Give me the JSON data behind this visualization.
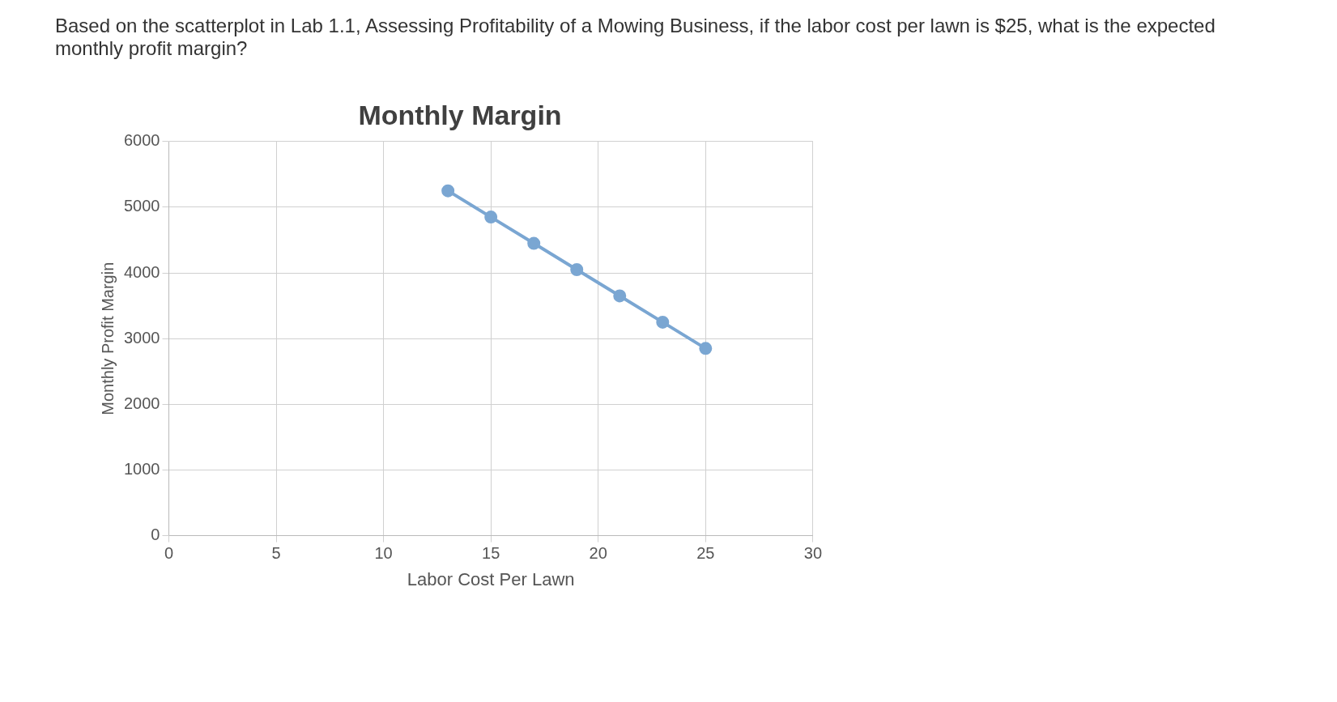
{
  "chart_data": {
    "type": "line",
    "title": "Monthly Margin",
    "xlabel": "Labor Cost Per Lawn",
    "ylabel": "Monthly Profit Margin",
    "annotations": [
      "Based on the scatterplot in Lab 1.1, Assessing Profitability of a Mowing Business, if the labor cost per lawn is $25, what is the expected monthly profit margin?"
    ],
    "x": [
      13,
      15,
      17,
      19,
      21,
      23,
      25
    ],
    "series": [
      {
        "color": "#7aa6d2",
        "values": [
          5250,
          4850,
          4450,
          4050,
          3650,
          3250,
          2850
        ]
      }
    ],
    "xlim": [
      0,
      30
    ],
    "xticks": [
      0,
      5,
      10,
      15,
      20,
      25,
      30
    ],
    "ylim": [
      0,
      6000
    ],
    "yticks": [
      0,
      1000,
      2000,
      3000,
      4000,
      5000,
      6000
    ],
    "grid": true,
    "legend": false,
    "marker": "circle",
    "line_style": "solid"
  }
}
